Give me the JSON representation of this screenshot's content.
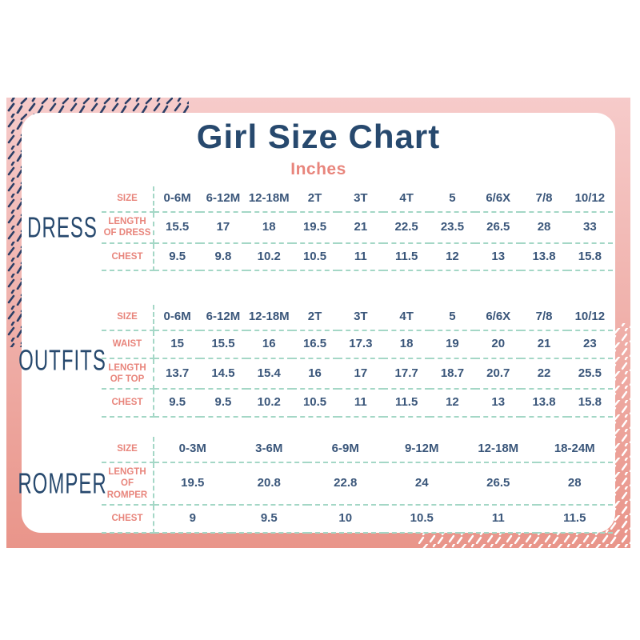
{
  "page": {
    "title": "Girl Size Chart",
    "subtitle": "Inches"
  },
  "colors": {
    "navy": "#27496e",
    "navy_text": "#3a567a",
    "navy_dash": "#2c3f66",
    "coral": "#e8857c",
    "teal": "#a4d7c6",
    "frame_top": "#f6cbca",
    "frame_bottom": "#e9958a"
  },
  "chart_data": [
    {
      "type": "table",
      "title": "DRESS",
      "header_label": "SIZE",
      "columns": [
        "0-6M",
        "6-12M",
        "12-18M",
        "2T",
        "3T",
        "4T",
        "5",
        "6/6X",
        "7/8",
        "10/12"
      ],
      "rows": [
        {
          "label": "LENGTH OF DRESS",
          "values": [
            15.5,
            17,
            18,
            19.5,
            21,
            22.5,
            23.5,
            26.5,
            28,
            33
          ]
        },
        {
          "label": "CHEST",
          "values": [
            9.5,
            9.8,
            10.2,
            10.5,
            11,
            11.5,
            12,
            13,
            13.8,
            15.8
          ]
        }
      ]
    },
    {
      "type": "table",
      "title": "OUTFITS",
      "header_label": "SIZE",
      "columns": [
        "0-6M",
        "6-12M",
        "12-18M",
        "2T",
        "3T",
        "4T",
        "5",
        "6/6X",
        "7/8",
        "10/12"
      ],
      "rows": [
        {
          "label": "WAIST",
          "values": [
            15,
            15.5,
            16,
            16.5,
            17.3,
            18,
            19,
            20,
            21,
            23
          ]
        },
        {
          "label": "LENGTH OF TOP",
          "values": [
            13.7,
            14.5,
            15.4,
            16,
            17,
            17.7,
            18.7,
            20.7,
            22,
            25.5
          ]
        },
        {
          "label": "CHEST",
          "values": [
            9.5,
            9.5,
            10.2,
            10.5,
            11,
            11.5,
            12,
            13,
            13.8,
            15.8
          ]
        }
      ]
    },
    {
      "type": "table",
      "title": "ROMPER",
      "header_label": "SIZE",
      "columns": [
        "0-3M",
        "3-6M",
        "6-9M",
        "9-12M",
        "12-18M",
        "18-24M"
      ],
      "rows": [
        {
          "label": "LENGTH OF ROMPER",
          "values": [
            19.5,
            20.8,
            22.8,
            24,
            26.5,
            28
          ]
        },
        {
          "label": "CHEST",
          "values": [
            9,
            9.5,
            10,
            10.5,
            11,
            11.5
          ]
        }
      ]
    }
  ]
}
